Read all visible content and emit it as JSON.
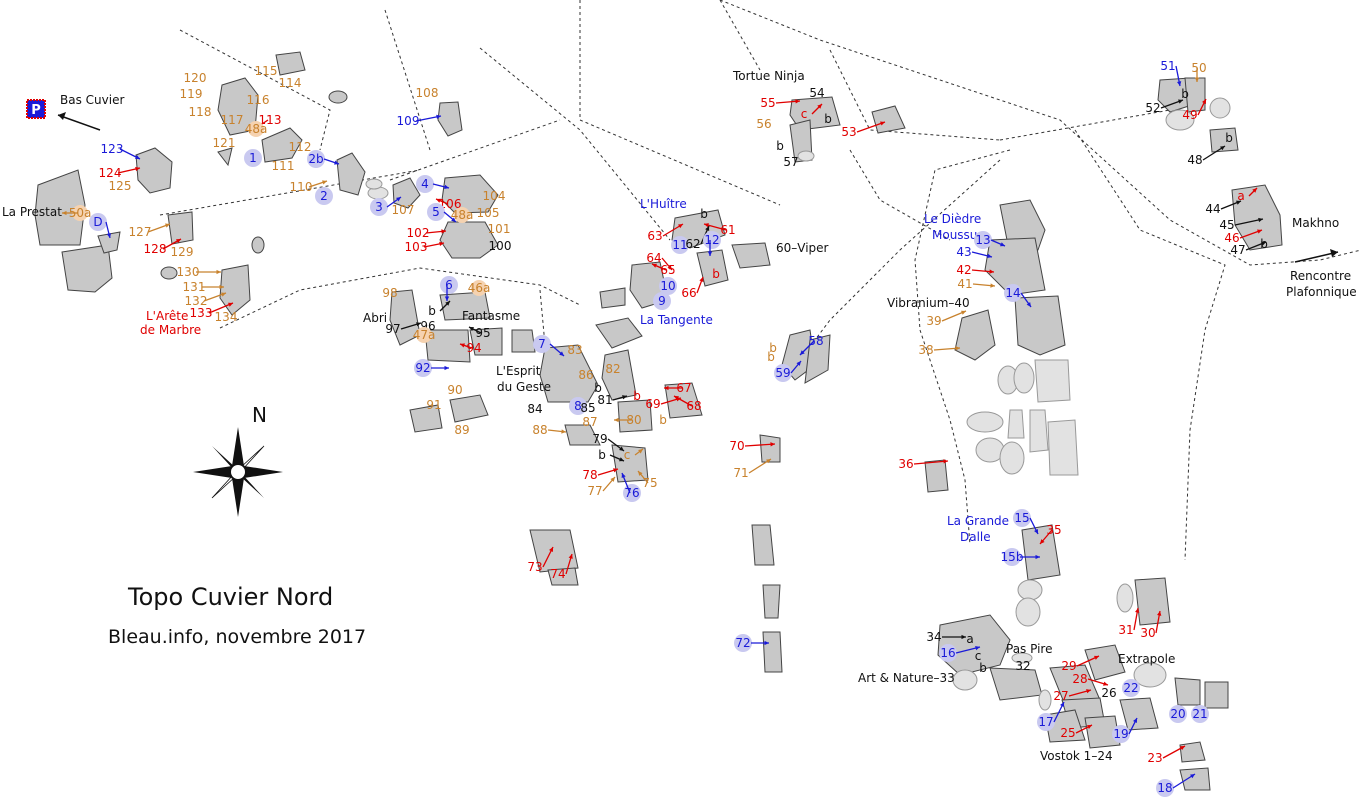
{
  "title": "Topo Cuvier Nord",
  "subtitle": "Bleau.info, novembre 2017",
  "compass_label": "N",
  "parking_label": "P",
  "colors": {
    "orange": "#c8822d",
    "red": "#e00000",
    "blue": "#1a1ad8",
    "black": "#111111",
    "boulder": "#c8c8c8"
  },
  "places": [
    {
      "id": "bas-cuvier",
      "text": "Bas Cuvier"
    },
    {
      "id": "la-prestat",
      "text": "La Prestat"
    },
    {
      "id": "arete-1",
      "text": "L'Arête"
    },
    {
      "id": "arete-2",
      "text": "de Marbre"
    },
    {
      "id": "abri",
      "text": "Abri"
    },
    {
      "id": "fantasme",
      "text": "Fantasme"
    },
    {
      "id": "esprit-1",
      "text": "L'Esprit"
    },
    {
      "id": "esprit-2",
      "text": "du Geste"
    },
    {
      "id": "huitre",
      "text": "L'Huître"
    },
    {
      "id": "tangente",
      "text": "La Tangente"
    },
    {
      "id": "viper",
      "text": "60–Viper"
    },
    {
      "id": "tortue",
      "text": "Tortue Ninja"
    },
    {
      "id": "diedre-1",
      "text": "Le Dièdre"
    },
    {
      "id": "diedre-2",
      "text": "Moussu"
    },
    {
      "id": "vibranium",
      "text": "Vibranium–40"
    },
    {
      "id": "grande-1",
      "text": "La Grande"
    },
    {
      "id": "grande-2",
      "text": "Dalle"
    },
    {
      "id": "pas-pire",
      "text": "Pas Pire"
    },
    {
      "id": "art-nature",
      "text": "Art & Nature–33"
    },
    {
      "id": "extrapole",
      "text": "Extrapole"
    },
    {
      "id": "vostok",
      "text": "Vostok 1–24"
    },
    {
      "id": "makhno",
      "text": "Makhno"
    },
    {
      "id": "rencontre-1",
      "text": "Rencontre"
    },
    {
      "id": "rencontre-2",
      "text": "Plafonnique"
    }
  ],
  "routes": [
    {
      "t": "115",
      "c": "orange"
    },
    {
      "t": "114",
      "c": "orange"
    },
    {
      "t": "120",
      "c": "orange"
    },
    {
      "t": "119",
      "c": "orange"
    },
    {
      "t": "118",
      "c": "orange"
    },
    {
      "t": "116",
      "c": "orange"
    },
    {
      "t": "117",
      "c": "orange"
    },
    {
      "t": "113",
      "c": "red"
    },
    {
      "t": "48a",
      "c": "orange"
    },
    {
      "t": "121",
      "c": "orange"
    },
    {
      "t": "1",
      "c": "blue"
    },
    {
      "t": "112",
      "c": "orange"
    },
    {
      "t": "111",
      "c": "orange"
    },
    {
      "t": "123",
      "c": "blue"
    },
    {
      "t": "124",
      "c": "red"
    },
    {
      "t": "125",
      "c": "orange"
    },
    {
      "t": "108",
      "c": "orange"
    },
    {
      "t": "109",
      "c": "blue"
    },
    {
      "t": "2b",
      "c": "blue"
    },
    {
      "t": "110",
      "c": "orange"
    },
    {
      "t": "2",
      "c": "blue"
    },
    {
      "t": "3",
      "c": "blue"
    },
    {
      "t": "4",
      "c": "blue"
    },
    {
      "t": "106",
      "c": "red"
    },
    {
      "t": "104",
      "c": "orange"
    },
    {
      "t": "107",
      "c": "orange"
    },
    {
      "t": "5",
      "c": "blue"
    },
    {
      "t": "48a",
      "c": "orange"
    },
    {
      "t": "105",
      "c": "orange"
    },
    {
      "t": "101",
      "c": "orange"
    },
    {
      "t": "102",
      "c": "red"
    },
    {
      "t": "103",
      "c": "red"
    },
    {
      "t": "100",
      "c": "black"
    },
    {
      "t": "50a",
      "c": "orange"
    },
    {
      "t": "D",
      "c": "blue"
    },
    {
      "t": "127",
      "c": "orange"
    },
    {
      "t": "128",
      "c": "red"
    },
    {
      "t": "129",
      "c": "orange"
    },
    {
      "t": "130",
      "c": "orange"
    },
    {
      "t": "131",
      "c": "orange"
    },
    {
      "t": "132",
      "c": "orange"
    },
    {
      "t": "133",
      "c": "red"
    },
    {
      "t": "134",
      "c": "orange"
    },
    {
      "t": "98",
      "c": "orange"
    },
    {
      "t": "6",
      "c": "blue"
    },
    {
      "t": "46a",
      "c": "orange"
    },
    {
      "t": "b",
      "c": "black"
    },
    {
      "t": "97",
      "c": "black"
    },
    {
      "t": "96",
      "c": "black"
    },
    {
      "t": "95",
      "c": "black"
    },
    {
      "t": "47a",
      "c": "orange"
    },
    {
      "t": "94",
      "c": "red"
    },
    {
      "t": "92",
      "c": "blue"
    },
    {
      "t": "7",
      "c": "blue"
    },
    {
      "t": "83",
      "c": "orange"
    },
    {
      "t": "82",
      "c": "orange"
    },
    {
      "t": "86",
      "c": "orange"
    },
    {
      "t": "b",
      "c": "black"
    },
    {
      "t": "8",
      "c": "blue"
    },
    {
      "t": "85",
      "c": "black"
    },
    {
      "t": "84",
      "c": "black"
    },
    {
      "t": "81",
      "c": "black"
    },
    {
      "t": "b",
      "c": "red"
    },
    {
      "t": "80",
      "c": "orange"
    },
    {
      "t": "87",
      "c": "orange"
    },
    {
      "t": "88",
      "c": "orange"
    },
    {
      "t": "79",
      "c": "black"
    },
    {
      "t": "b",
      "c": "black"
    },
    {
      "t": "c",
      "c": "orange"
    },
    {
      "t": "78",
      "c": "red"
    },
    {
      "t": "77",
      "c": "orange"
    },
    {
      "t": "75",
      "c": "orange"
    },
    {
      "t": "76",
      "c": "blue"
    },
    {
      "t": "90",
      "c": "orange"
    },
    {
      "t": "91",
      "c": "orange"
    },
    {
      "t": "89",
      "c": "orange"
    },
    {
      "t": "67",
      "c": "red"
    },
    {
      "t": "69",
      "c": "red"
    },
    {
      "t": "68",
      "c": "red"
    },
    {
      "t": "b",
      "c": "orange"
    },
    {
      "t": "73",
      "c": "red"
    },
    {
      "t": "74",
      "c": "red"
    },
    {
      "t": "63",
      "c": "red"
    },
    {
      "t": "b",
      "c": "black"
    },
    {
      "t": "61",
      "c": "red"
    },
    {
      "t": "11",
      "c": "blue"
    },
    {
      "t": "62",
      "c": "black"
    },
    {
      "t": "12",
      "c": "blue"
    },
    {
      "t": "64",
      "c": "red"
    },
    {
      "t": "65",
      "c": "red"
    },
    {
      "t": "b",
      "c": "red"
    },
    {
      "t": "66",
      "c": "red"
    },
    {
      "t": "10",
      "c": "blue"
    },
    {
      "t": "9",
      "c": "blue"
    },
    {
      "t": "58",
      "c": "blue"
    },
    {
      "t": "b",
      "c": "orange"
    },
    {
      "t": "59",
      "c": "blue"
    },
    {
      "t": "b",
      "c": "orange"
    },
    {
      "t": "70",
      "c": "red"
    },
    {
      "t": "71",
      "c": "orange"
    },
    {
      "t": "72",
      "c": "blue"
    },
    {
      "t": "54",
      "c": "black"
    },
    {
      "t": "55",
      "c": "red"
    },
    {
      "t": "c",
      "c": "red"
    },
    {
      "t": "b",
      "c": "black"
    },
    {
      "t": "56",
      "c": "orange"
    },
    {
      "t": "b",
      "c": "black"
    },
    {
      "t": "57",
      "c": "black"
    },
    {
      "t": "53",
      "c": "red"
    },
    {
      "t": "13",
      "c": "blue"
    },
    {
      "t": "43",
      "c": "blue"
    },
    {
      "t": "42",
      "c": "red"
    },
    {
      "t": "41",
      "c": "orange"
    },
    {
      "t": "14",
      "c": "blue"
    },
    {
      "t": "39",
      "c": "orange"
    },
    {
      "t": "38",
      "c": "orange"
    },
    {
      "t": "36",
      "c": "red"
    },
    {
      "t": "15",
      "c": "blue"
    },
    {
      "t": "35",
      "c": "red"
    },
    {
      "t": "15b",
      "c": "blue"
    },
    {
      "t": "31",
      "c": "red"
    },
    {
      "t": "30",
      "c": "red"
    },
    {
      "t": "34",
      "c": "black"
    },
    {
      "t": "a",
      "c": "black"
    },
    {
      "t": "16",
      "c": "blue"
    },
    {
      "t": "c",
      "c": "black"
    },
    {
      "t": "b",
      "c": "black"
    },
    {
      "t": "32",
      "c": "black"
    },
    {
      "t": "29",
      "c": "red"
    },
    {
      "t": "28",
      "c": "red"
    },
    {
      "t": "27",
      "c": "red"
    },
    {
      "t": "26",
      "c": "black"
    },
    {
      "t": "17",
      "c": "blue"
    },
    {
      "t": "25",
      "c": "red"
    },
    {
      "t": "22",
      "c": "blue"
    },
    {
      "t": "19",
      "c": "blue"
    },
    {
      "t": "20",
      "c": "blue"
    },
    {
      "t": "21",
      "c": "blue"
    },
    {
      "t": "23",
      "c": "red"
    },
    {
      "t": "18",
      "c": "blue"
    },
    {
      "t": "51",
      "c": "blue"
    },
    {
      "t": "50",
      "c": "orange"
    },
    {
      "t": "52",
      "c": "black"
    },
    {
      "t": "b",
      "c": "black"
    },
    {
      "t": "49",
      "c": "red"
    },
    {
      "t": "b",
      "c": "black"
    },
    {
      "t": "48",
      "c": "black"
    },
    {
      "t": "a",
      "c": "red"
    },
    {
      "t": "44",
      "c": "black"
    },
    {
      "t": "45",
      "c": "black"
    },
    {
      "t": "46",
      "c": "red"
    },
    {
      "t": "b",
      "c": "black"
    },
    {
      "t": "47",
      "c": "black"
    }
  ]
}
